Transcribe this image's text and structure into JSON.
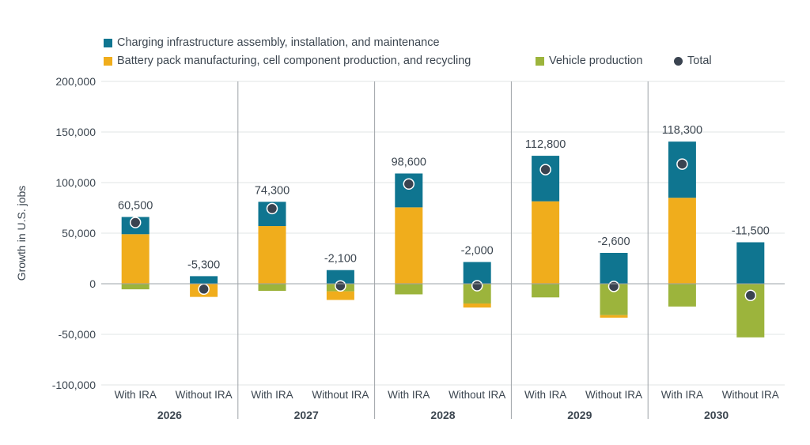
{
  "chart_data": {
    "type": "bar",
    "stacked": true,
    "ylabel": "Growth in U.S. jobs",
    "ylim": [
      -100000,
      200000
    ],
    "yticks": [
      -100000,
      -50000,
      0,
      50000,
      100000,
      150000,
      200000
    ],
    "ytick_labels": [
      "-100,000",
      "-50,000",
      "0",
      "50,000",
      "100,000",
      "150,000",
      "200,000"
    ],
    "groups": [
      "2026",
      "2027",
      "2028",
      "2029",
      "2030"
    ],
    "categories": [
      "With IRA",
      "Without IRA"
    ],
    "colors": {
      "charging": "#0f7590",
      "battery": "#f0ad1c",
      "vehicle": "#9cb43c",
      "total": "#3a4350"
    },
    "legend": {
      "charging": "Charging infrastructure assembly, installation, and maintenance",
      "battery": "Battery pack manufacturing, cell component production, and recycling",
      "vehicle": "Vehicle production",
      "total": "Total"
    },
    "bars": [
      {
        "group": "2026",
        "category": "With IRA",
        "charging": 17000,
        "battery": 49000,
        "vehicle": -5500,
        "total": 60500,
        "total_label": "60,500"
      },
      {
        "group": "2026",
        "category": "Without IRA",
        "charging": 7500,
        "battery": -13000,
        "vehicle": 0,
        "total": -5300,
        "total_label": "-5,300"
      },
      {
        "group": "2027",
        "category": "With IRA",
        "charging": 24000,
        "battery": 57000,
        "vehicle": -7000,
        "total": 74300,
        "total_label": "74,300"
      },
      {
        "group": "2027",
        "category": "Without IRA",
        "charging": 13500,
        "battery": -8500,
        "vehicle": -7500,
        "total": -2100,
        "total_label": "-2,100"
      },
      {
        "group": "2028",
        "category": "With IRA",
        "charging": 33500,
        "battery": 75500,
        "vehicle": -10500,
        "total": 98600,
        "total_label": "98,600"
      },
      {
        "group": "2028",
        "category": "Without IRA",
        "charging": 21500,
        "battery": -4000,
        "vehicle": -19500,
        "total": -2000,
        "total_label": "-2,000"
      },
      {
        "group": "2029",
        "category": "With IRA",
        "charging": 45000,
        "battery": 81500,
        "vehicle": -13500,
        "total": 112800,
        "total_label": "112,800"
      },
      {
        "group": "2029",
        "category": "Without IRA",
        "charging": 30500,
        "battery": -2500,
        "vehicle": -31000,
        "total": -2600,
        "total_label": "-2,600"
      },
      {
        "group": "2030",
        "category": "With IRA",
        "charging": 55500,
        "battery": 85000,
        "vehicle": -22500,
        "total": 118300,
        "total_label": "118,300"
      },
      {
        "group": "2030",
        "category": "Without IRA",
        "charging": 41000,
        "battery": 0,
        "vehicle": -53000,
        "total": -11500,
        "total_label": "-11,500"
      }
    ]
  }
}
